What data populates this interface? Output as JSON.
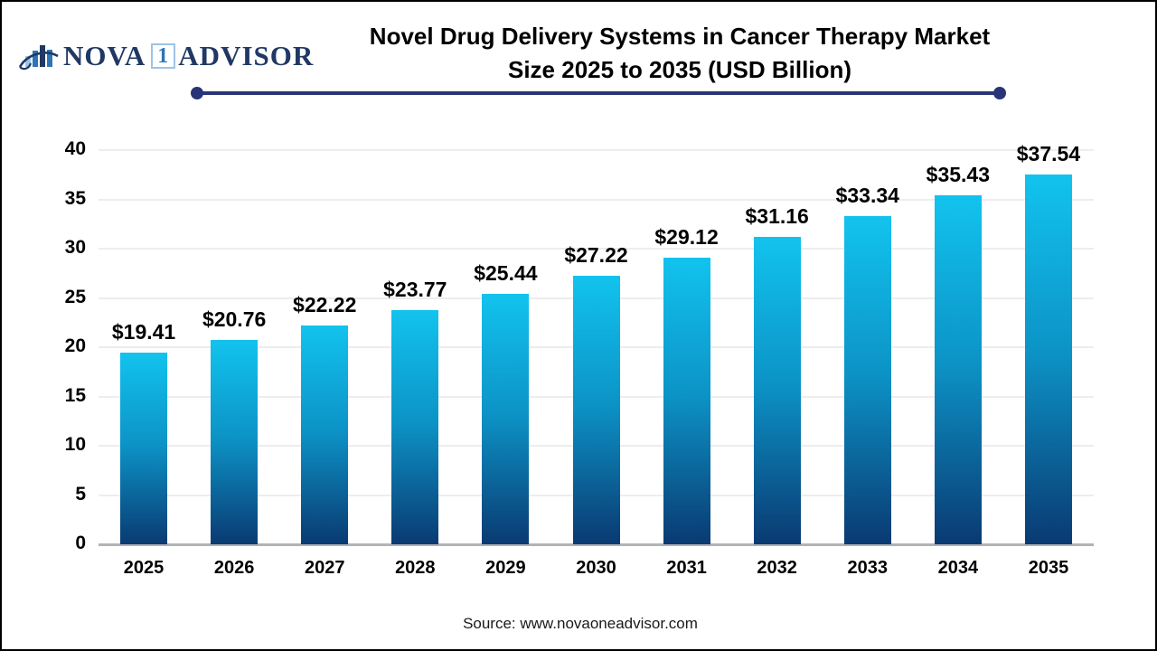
{
  "logo": {
    "icon": "bar-chart-swoosh-icon",
    "part1": "NOVA",
    "part2": "1",
    "part3": "ADVISOR",
    "navy": "#203864",
    "box_border": "#9dc3e6",
    "box_text": "#2e75b6"
  },
  "header": {
    "title_line1": "Novel Drug Delivery Systems in Cancer Therapy Market",
    "title_line2": "Size 2025 to 2035 (USD Billion)",
    "underline_color": "#283477"
  },
  "chart_data": {
    "type": "bar",
    "title": "Novel Drug Delivery Systems in Cancer Therapy Market Size 2025 to 2035 (USD Billion)",
    "categories": [
      "2025",
      "2026",
      "2027",
      "2028",
      "2029",
      "2030",
      "2031",
      "2032",
      "2033",
      "2034",
      "2035"
    ],
    "values": [
      19.41,
      20.76,
      22.22,
      23.77,
      25.44,
      27.22,
      29.12,
      31.16,
      33.34,
      35.43,
      37.54
    ],
    "value_labels": [
      "$19.41",
      "$20.76",
      "$22.22",
      "$23.77",
      "$25.44",
      "$27.22",
      "$29.12",
      "$31.16",
      "$33.34",
      "$35.43",
      "$37.54"
    ],
    "xlabel": "",
    "ylabel": "",
    "ylim": [
      0,
      40
    ],
    "yticks": [
      0,
      5,
      10,
      15,
      20,
      25,
      30,
      35,
      40
    ],
    "grid": true,
    "legend": false,
    "bar_gradient_top": "#12c3ee",
    "bar_gradient_mid": "#0c93c6",
    "bar_gradient_bottom": "#0a3a72",
    "gridline_color": "#ededed",
    "baseline_color": "#b3b3b3"
  },
  "footer": {
    "source": "Source: www.novaoneadvisor.com"
  }
}
